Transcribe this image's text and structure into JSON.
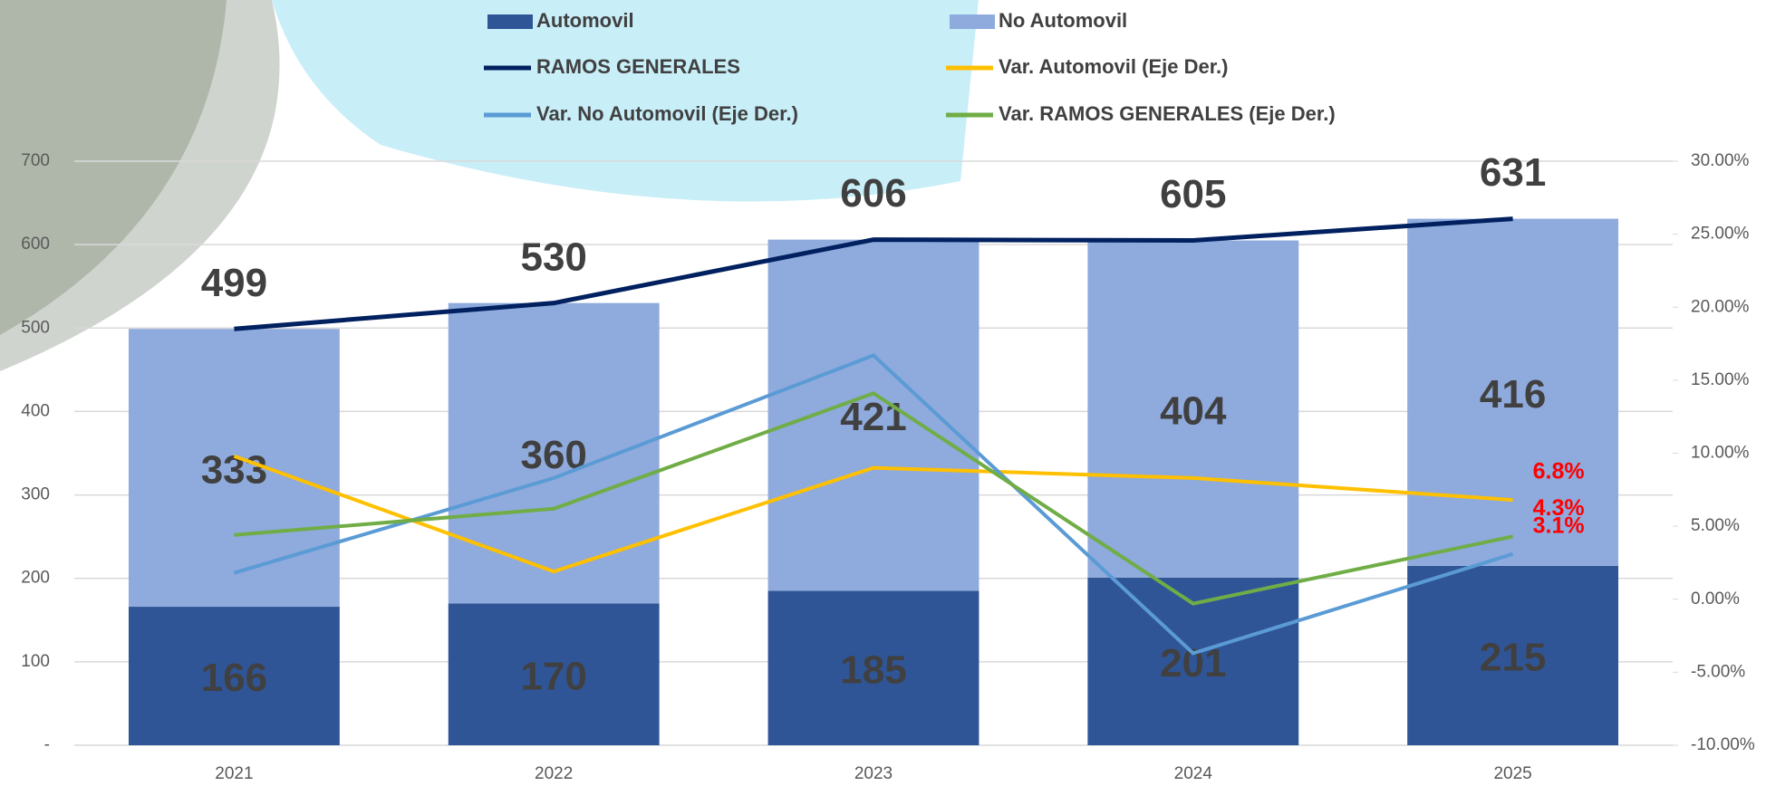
{
  "chart_data": {
    "type": "bar",
    "stacked": true,
    "categories": [
      "2021",
      "2022",
      "2023",
      "2024",
      "2025"
    ],
    "series": [
      {
        "name": "Automovil",
        "type": "bar",
        "color": "#2f5597",
        "values": [
          166,
          170,
          185,
          201,
          215
        ]
      },
      {
        "name": "No Automovil",
        "type": "bar",
        "color": "#8faadc",
        "values": [
          333,
          360,
          421,
          404,
          416
        ]
      },
      {
        "name": "RAMOS GENERALES",
        "type": "line",
        "color": "#002060",
        "values": [
          499,
          530,
          606,
          605,
          631
        ]
      },
      {
        "name": "Var. Automovil (Eje Der.)",
        "type": "line",
        "axis": "y2",
        "color": "#ffc000",
        "values": [
          9.8,
          1.9,
          9.0,
          8.3,
          6.8
        ],
        "value_labels": [
          null,
          null,
          null,
          null,
          "6.8%"
        ]
      },
      {
        "name": "Var. No Automovil (Eje Der.)",
        "type": "line",
        "axis": "y2",
        "color": "#5b9bd5",
        "values": [
          1.8,
          8.3,
          16.7,
          -3.7,
          3.1
        ],
        "value_labels": [
          null,
          null,
          null,
          null,
          "3.1%"
        ]
      },
      {
        "name": "Var. RAMOS GENERALES (Eje Der.)",
        "type": "line",
        "axis": "y2",
        "color": "#70ad47",
        "values": [
          4.4,
          6.2,
          14.1,
          -0.3,
          4.3
        ],
        "value_labels": [
          null,
          null,
          null,
          null,
          "4.3%"
        ]
      }
    ],
    "ylim": [
      0,
      700
    ],
    "yticks": [
      {
        "value": 0,
        "label": "-"
      },
      100,
      200,
      300,
      400,
      500,
      600,
      700
    ],
    "y2lim": [
      -10,
      30
    ],
    "y2ticks": [
      {
        "value": -10,
        "label": "-10.00%"
      },
      {
        "value": -5,
        "label": "-5.00%"
      },
      {
        "value": 0,
        "label": "0.00%"
      },
      {
        "value": 5,
        "label": "5.00%"
      },
      {
        "value": 10,
        "label": "10.00%"
      },
      {
        "value": 15,
        "label": "15.00%"
      },
      {
        "value": 20,
        "label": "20.00%"
      },
      {
        "value": 25,
        "label": "25.00%"
      },
      {
        "value": 30,
        "label": "30.00%"
      }
    ],
    "grid": true
  }
}
